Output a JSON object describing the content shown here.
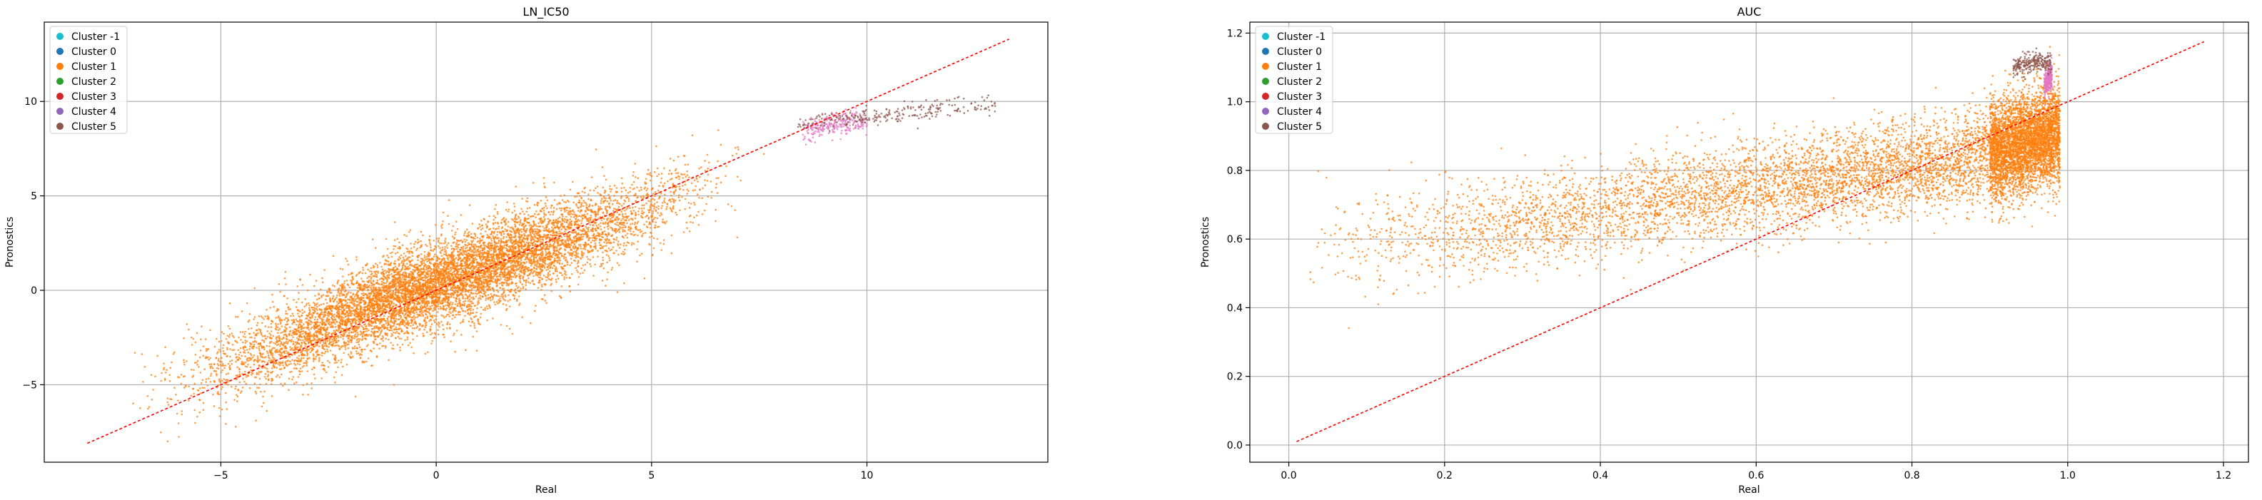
{
  "colors": {
    "cluster_-1": "#17becf",
    "cluster_0": "#1f77b4",
    "cluster_1": "#ff7f0e",
    "cluster_2": "#2ca02c",
    "cluster_3": "#d62728",
    "cluster_4": "#9467bd",
    "cluster_5": "#8c564b",
    "cluster_pink": "#e377c2",
    "diagonal": "#ff0000",
    "grid": "#b0b0b0"
  },
  "chart_data": [
    {
      "type": "scatter",
      "title": "LN_IC50",
      "xlabel": "Real",
      "ylabel": "Pronostics",
      "xlim": [
        -9.1,
        14.2
      ],
      "ylim": [
        -9.1,
        14.2
      ],
      "xticks": [
        -5,
        0,
        5,
        10
      ],
      "yticks": [
        -5,
        0,
        5,
        10
      ],
      "xtick_labels": [
        "−5",
        "0",
        "5",
        "10"
      ],
      "ytick_labels": [
        "−5",
        "0",
        "5",
        "10"
      ],
      "grid": true,
      "legend_position": "upper-left",
      "legend": [
        "Cluster -1",
        "Cluster 0",
        "Cluster 1",
        "Cluster 2",
        "Cluster 3",
        "Cluster 4",
        "Cluster 5"
      ],
      "reference_line": {
        "style": "dashed",
        "from": [
          -8.1,
          -8.1
        ],
        "to": [
          13.3,
          13.3
        ]
      },
      "series": [
        {
          "name": "Cluster 1",
          "approx_points": [
            [
              -7.5,
              -5.2
            ],
            [
              -6,
              -4.6
            ],
            [
              -5,
              -4.1
            ],
            [
              -4,
              -3.2
            ],
            [
              -3,
              -2.4
            ],
            [
              -2,
              -1.3
            ],
            [
              -1,
              -0.4
            ],
            [
              0,
              0.3
            ],
            [
              1,
              1.1
            ],
            [
              2,
              2.0
            ],
            [
              3,
              2.8
            ],
            [
              4,
              3.5
            ],
            [
              5,
              4.3
            ],
            [
              6,
              5.2
            ],
            [
              7,
              6.0
            ],
            [
              7.8,
              6.8
            ]
          ],
          "spread": 1.1
        },
        {
          "name": "Cluster 4",
          "approx_points": [
            [
              8.5,
              8.4
            ],
            [
              9,
              8.7
            ],
            [
              9.5,
              8.9
            ],
            [
              10,
              9.0
            ]
          ],
          "spread": 0.3
        },
        {
          "name": "Cluster 5",
          "approx_points": [
            [
              8.3,
              8.6
            ],
            [
              9,
              9.0
            ],
            [
              10,
              9.2
            ],
            [
              11,
              9.4
            ],
            [
              12,
              9.7
            ],
            [
              13,
              9.8
            ]
          ],
          "spread": 0.25
        }
      ]
    },
    {
      "type": "scatter",
      "title": "AUC",
      "xlabel": "Real",
      "ylabel": "Pronostics",
      "xlim": [
        -0.05,
        1.232
      ],
      "ylim": [
        -0.05,
        1.232
      ],
      "xticks": [
        0.0,
        0.2,
        0.4,
        0.6,
        0.8,
        1.0,
        1.2
      ],
      "yticks": [
        0.0,
        0.2,
        0.4,
        0.6,
        0.8,
        1.0,
        1.2
      ],
      "xtick_labels": [
        "0.0",
        "0.2",
        "0.4",
        "0.6",
        "0.8",
        "1.0",
        "1.2"
      ],
      "ytick_labels": [
        "0.0",
        "0.2",
        "0.4",
        "0.6",
        "0.8",
        "1.0",
        "1.2"
      ],
      "grid": true,
      "legend_position": "upper-left",
      "legend": [
        "Cluster -1",
        "Cluster 0",
        "Cluster 1",
        "Cluster 2",
        "Cluster 3",
        "Cluster 4",
        "Cluster 5"
      ],
      "reference_line": {
        "style": "dashed",
        "from": [
          0.01,
          0.01
        ],
        "to": [
          1.175,
          1.175
        ]
      },
      "series": [
        {
          "name": "Cluster 1",
          "approx_points": [
            [
              0.02,
              0.58
            ],
            [
              0.1,
              0.6
            ],
            [
              0.2,
              0.62
            ],
            [
              0.3,
              0.65
            ],
            [
              0.4,
              0.68
            ],
            [
              0.5,
              0.72
            ],
            [
              0.6,
              0.75
            ],
            [
              0.7,
              0.78
            ],
            [
              0.8,
              0.81
            ],
            [
              0.9,
              0.85
            ],
            [
              0.98,
              0.9
            ]
          ],
          "spread": 0.07
        },
        {
          "name": "Cluster 4",
          "approx_points": [
            [
              0.97,
              1.05
            ],
            [
              0.98,
              1.08
            ]
          ],
          "spread": 0.02
        },
        {
          "name": "Cluster 5",
          "approx_points": [
            [
              0.93,
              1.1
            ],
            [
              0.96,
              1.12
            ],
            [
              0.98,
              1.11
            ]
          ],
          "spread": 0.015
        }
      ]
    }
  ]
}
